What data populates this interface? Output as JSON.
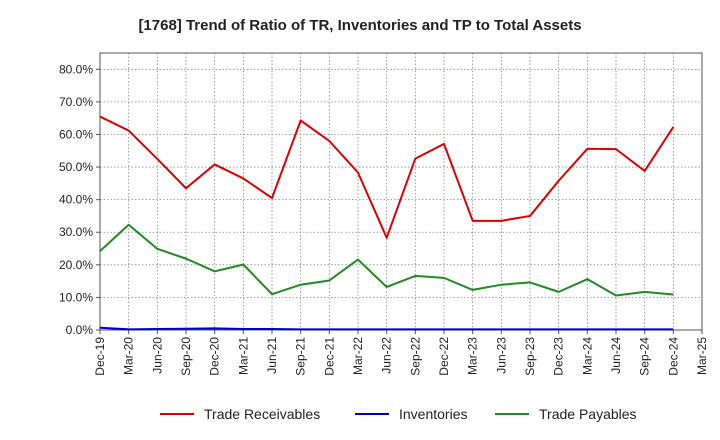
{
  "chart_data": {
    "type": "line",
    "title": "[1768]  Trend of Ratio of TR, Inventories and TP to Total Assets",
    "xlabel": "",
    "ylabel": "",
    "ylim": [
      0,
      85
    ],
    "y_ticks": [
      "0.0%",
      "10.0%",
      "20.0%",
      "30.0%",
      "40.0%",
      "50.0%",
      "60.0%",
      "70.0%",
      "80.0%"
    ],
    "y_tick_values": [
      0,
      10,
      20,
      30,
      40,
      50,
      60,
      70,
      80
    ],
    "x_ticks": [
      "Dec-19",
      "Mar-20",
      "Jun-20",
      "Sep-20",
      "Dec-20",
      "Mar-21",
      "Jun-21",
      "Sep-21",
      "Dec-21",
      "Mar-22",
      "Jun-22",
      "Sep-22",
      "Dec-22",
      "Mar-23",
      "Jun-23",
      "Sep-23",
      "Dec-23",
      "Mar-24",
      "Jun-24",
      "Sep-24",
      "Dec-24",
      "Mar-25"
    ],
    "categories": [
      "Dec-19",
      "Mar-20",
      "Jun-20",
      "Sep-20",
      "Dec-20",
      "Mar-21",
      "Jun-21",
      "Sep-21",
      "Dec-21",
      "Mar-22",
      "Jun-22",
      "Sep-22",
      "Dec-22",
      "Mar-23",
      "Jun-23",
      "Sep-23",
      "Dec-23",
      "Mar-24",
      "Jun-24",
      "Sep-24",
      "Dec-24"
    ],
    "grid": true,
    "legend_position": "bottom",
    "series": [
      {
        "name": "Trade Receivables",
        "color": "#dd0000",
        "values": [
          65.5,
          61.2,
          52.5,
          43.5,
          50.8,
          46.5,
          40.5,
          64.3,
          58.0,
          48.3,
          28.3,
          52.6,
          57.1,
          33.5,
          33.5,
          35.0,
          45.8,
          55.6,
          55.5,
          48.8,
          62.3
        ]
      },
      {
        "name": "Inventories",
        "color": "#0000cc",
        "values": [
          0.7,
          0.2,
          0.3,
          0.4,
          0.5,
          0.3,
          0.3,
          0.2,
          0.2,
          0.2,
          0.2,
          0.2,
          0.2,
          0.2,
          0.2,
          0.2,
          0.2,
          0.2,
          0.2,
          0.2,
          0.2
        ]
      },
      {
        "name": "Trade Payables",
        "color": "#228b22",
        "values": [
          24.2,
          32.3,
          24.9,
          21.9,
          18.0,
          20.1,
          11.0,
          13.9,
          15.2,
          21.6,
          13.2,
          16.6,
          16.0,
          12.3,
          13.9,
          14.6,
          11.7,
          15.6,
          10.6,
          11.7,
          10.9
        ]
      }
    ]
  }
}
